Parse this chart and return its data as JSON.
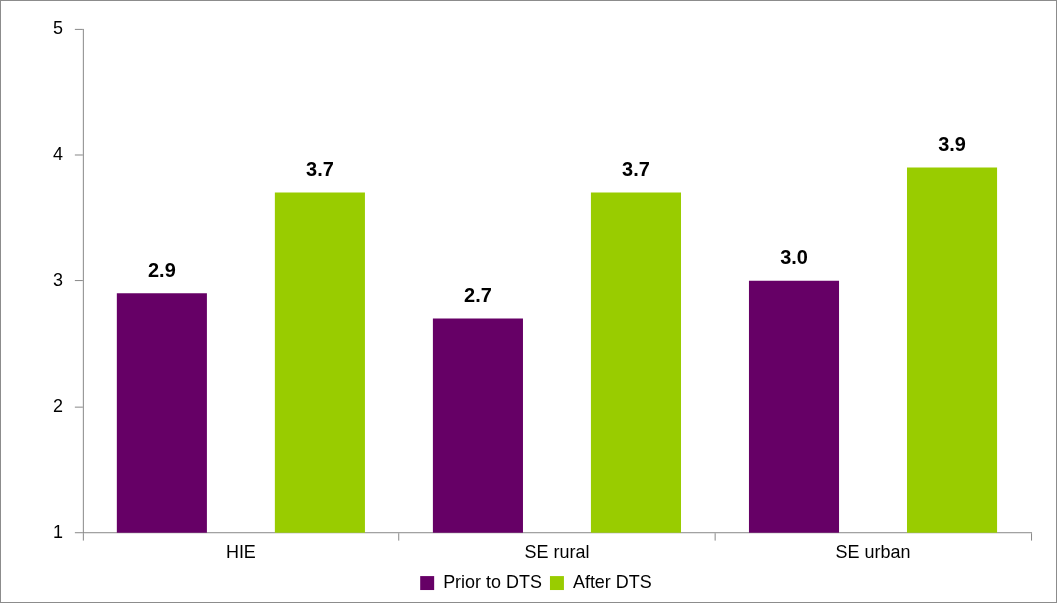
{
  "chart_data": {
    "type": "bar",
    "categories": [
      "HIE",
      "SE rural",
      "SE urban"
    ],
    "series": [
      {
        "name": "Prior to DTS",
        "color": "#660066",
        "values": [
          2.9,
          2.7,
          3.0
        ],
        "value_labels": [
          "2.9",
          "2.7",
          "3.0"
        ]
      },
      {
        "name": "After DTS",
        "color": "#99cc00",
        "values": [
          3.7,
          3.7,
          3.9
        ],
        "value_labels": [
          "3.7",
          "3.7",
          "3.9"
        ]
      }
    ],
    "ylim": [
      1,
      5
    ],
    "yticks": [
      1,
      2,
      3,
      4,
      5
    ],
    "legend": "bottom"
  }
}
